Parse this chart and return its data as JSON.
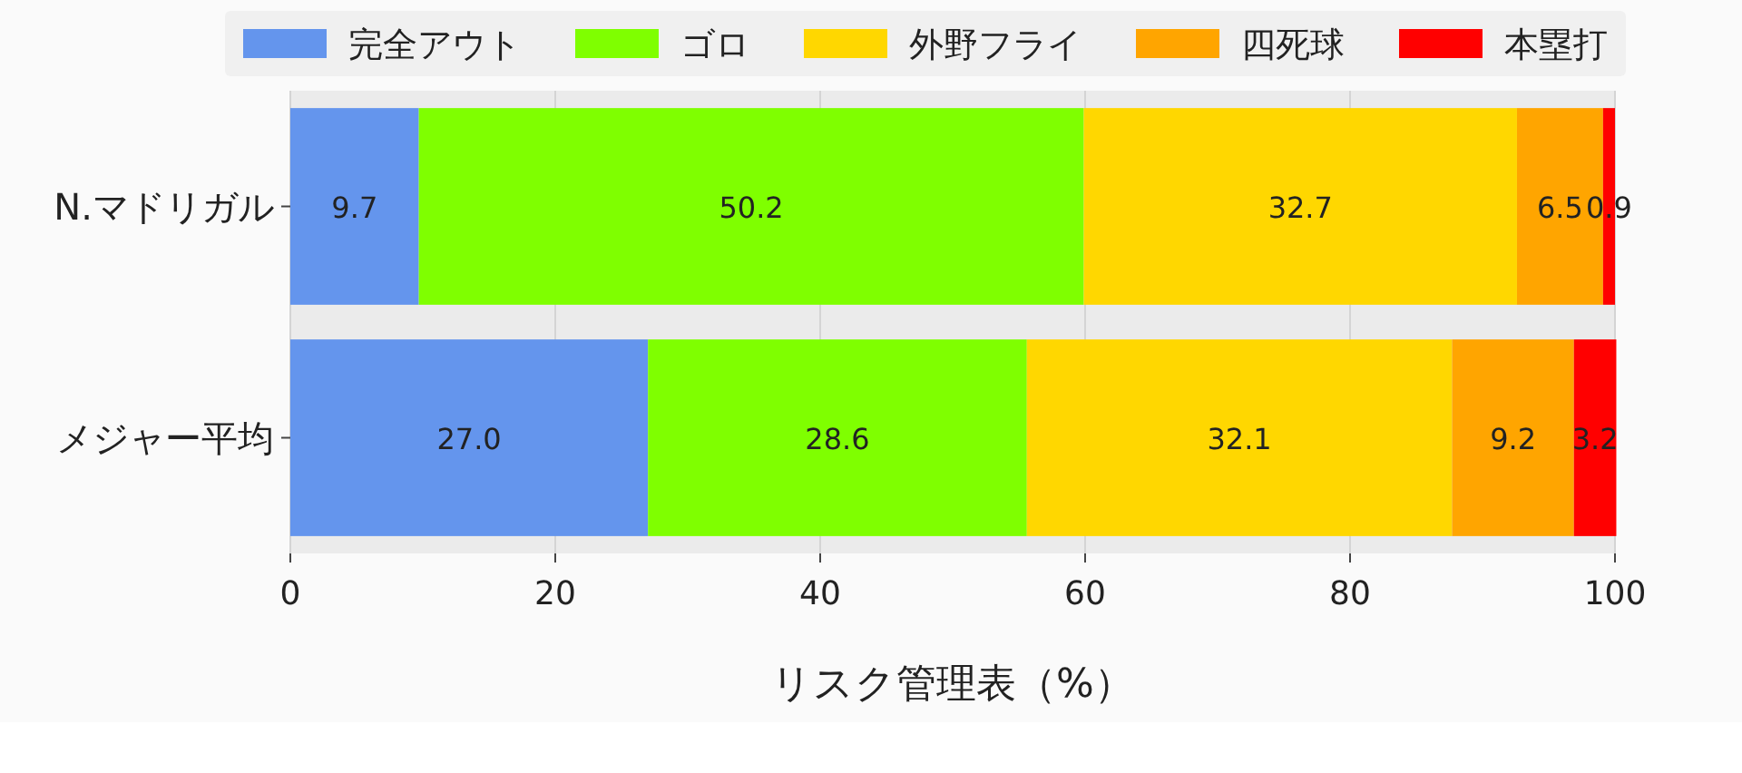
{
  "chart_data": {
    "type": "bar",
    "orientation": "horizontal",
    "stacked": true,
    "categories": [
      "N.マドリガル",
      "メジャー平均"
    ],
    "series": [
      {
        "name": "完全アウト",
        "color": "#6495ed",
        "values": [
          9.7,
          27.0
        ],
        "value_labels": [
          "9.7",
          "27.0"
        ]
      },
      {
        "name": "ゴロ",
        "color": "#7fff00",
        "values": [
          50.2,
          28.6
        ],
        "value_labels": [
          "50.2",
          "28.6"
        ]
      },
      {
        "name": "外野フライ",
        "color": "#ffd700",
        "values": [
          32.7,
          32.1
        ],
        "value_labels": [
          "32.7",
          "32.1"
        ]
      },
      {
        "name": "四死球",
        "color": "#ffa500",
        "values": [
          6.5,
          9.2
        ],
        "value_labels": [
          "6.5",
          "9.2"
        ]
      },
      {
        "name": "本塁打",
        "color": "#ff0000",
        "values": [
          0.9,
          3.2
        ],
        "value_labels": [
          "0.9",
          "3.2"
        ]
      }
    ],
    "xlim": [
      0,
      100
    ],
    "xticks": [
      0,
      20,
      40,
      60,
      80,
      100
    ],
    "xlabel": "リスク管理表（%）",
    "grid": "x",
    "legend": "top"
  }
}
